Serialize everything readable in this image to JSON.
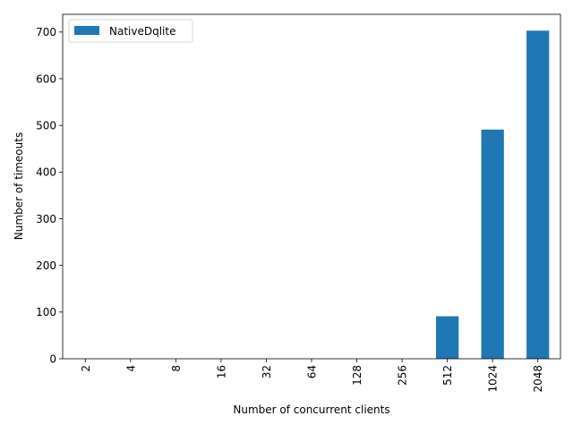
{
  "chart_data": {
    "type": "bar",
    "title": "",
    "xlabel": "Number of concurrent clients",
    "ylabel": "Number of timeouts",
    "categories": [
      "2",
      "4",
      "8",
      "16",
      "32",
      "64",
      "128",
      "256",
      "512",
      "1024",
      "2048"
    ],
    "series": [
      {
        "name": "NativeDqlite",
        "color": "#1f77b4",
        "values": [
          0,
          0,
          0,
          0,
          0,
          0,
          0,
          0,
          91,
          491,
          703
        ]
      }
    ],
    "ylim": [
      0,
      738
    ],
    "yticks": [
      0,
      100,
      200,
      300,
      400,
      500,
      600,
      700
    ],
    "ytick_labels": [
      "0",
      "100",
      "200",
      "300",
      "400",
      "500",
      "600",
      "700"
    ],
    "grid": false,
    "legend_position": "top-left"
  }
}
